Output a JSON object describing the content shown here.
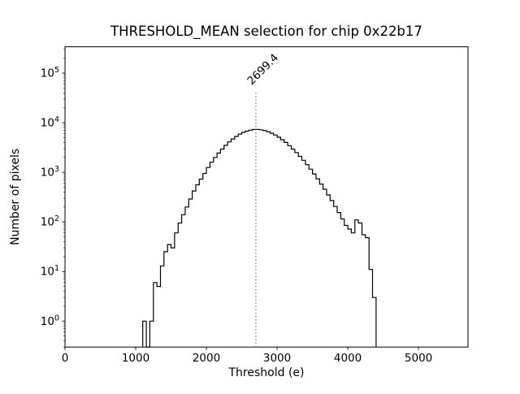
{
  "chart_data": {
    "type": "histogram-step",
    "title": "THRESHOLD_MEAN selection for chip 0x22b17",
    "xlabel": "Threshold (e)",
    "ylabel": "Number of pixels",
    "yscale": "log",
    "xlim": [
      0,
      5700
    ],
    "ylim": [
      0.3,
      340000
    ],
    "x_ticks": [
      0,
      1000,
      2000,
      3000,
      4000,
      5000
    ],
    "y_ticks_exponents": [
      0,
      1,
      2,
      3,
      4,
      5
    ],
    "grid": false,
    "legend": "none",
    "line_color": "#000000",
    "background": "#ffffff",
    "bin_start": 1100,
    "bin_width": 50,
    "counts": [
      1,
      0,
      1,
      6,
      5,
      13,
      25,
      35,
      30,
      60,
      95,
      140,
      200,
      290,
      420,
      560,
      730,
      950,
      1250,
      1600,
      2000,
      2450,
      2950,
      3500,
      4100,
      4700,
      5300,
      5900,
      6400,
      6800,
      7100,
      7300,
      7350,
      7200,
      6950,
      6600,
      6150,
      5650,
      5100,
      4550,
      4000,
      3450,
      2950,
      2500,
      2100,
      1750,
      1430,
      1160,
      930,
      740,
      580,
      455,
      350,
      270,
      205,
      155,
      115,
      85,
      72,
      60,
      110,
      95,
      55,
      48,
      11,
      3
    ],
    "vline": {
      "x": 2699.4,
      "label": "2699.4",
      "ymax_fraction": 0.85,
      "color": "#808080",
      "style": "dotted"
    }
  }
}
